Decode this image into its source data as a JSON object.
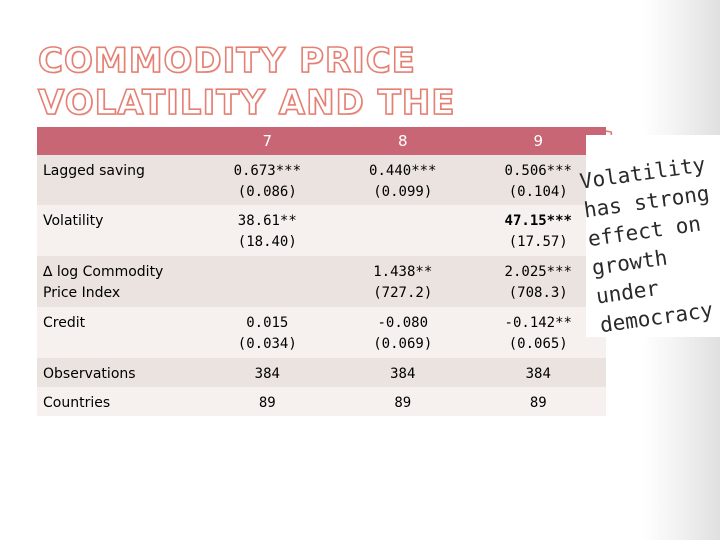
{
  "title": "COMMODITY PRICE VOLATILITY AND THE SAVING RATE: DEMOCRACIES",
  "table": {
    "columns": [
      "",
      "7",
      "8",
      "9"
    ],
    "rows": [
      {
        "label": "Lagged saving",
        "c7": "0.673***",
        "c7b": "(0.086)",
        "c8": "0.440***",
        "c8b": "(0.099)",
        "c9": "0.506***",
        "c9b": "(0.104)"
      },
      {
        "label": "Volatility",
        "c7": "38.61**",
        "c7b": "(18.40)",
        "c8": "",
        "c8b": "",
        "c9": "47.15***",
        "c9b": "(17.57)"
      },
      {
        "label": "∆ log Commodity Price Index",
        "c7": "",
        "c7b": "",
        "c8": "1.438**",
        "c8b": "(727.2)",
        "c9": "2.025***",
        "c9b": "(708.3)"
      },
      {
        "label": "Credit",
        "c7": "0.015",
        "c7b": "(0.034)",
        "c8": "-0.080",
        "c8b": "(0.069)",
        "c9": "-0.142**",
        "c9b": "(0.065)"
      },
      {
        "label": "Observations",
        "c7": "384",
        "c8": "384",
        "c9": "384"
      },
      {
        "label": "Countries",
        "c7": "89",
        "c8": "89",
        "c9": "89"
      }
    ]
  },
  "annotation": "Volatility has strong effect on growth under democracy"
}
